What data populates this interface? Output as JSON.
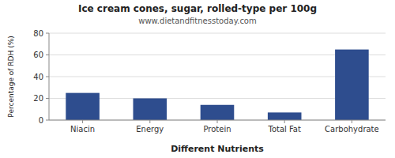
{
  "chart_data": {
    "type": "bar",
    "title": "Ice cream cones, sugar, rolled-type per 100g",
    "subtitle": "www.dietandfitnesstoday.com",
    "categories": [
      "Niacin",
      "Energy",
      "Protein",
      "Total Fat",
      "Carbohydrate"
    ],
    "values": [
      25,
      20,
      14,
      7,
      65
    ],
    "color": "#2e4d8e",
    "xlabel": "Different Nutrients",
    "ylabel": "Percentage of RDH (%)",
    "ylim": [
      0,
      80
    ],
    "yticks": [
      0,
      20,
      40,
      60,
      80
    ],
    "grid": true
  }
}
